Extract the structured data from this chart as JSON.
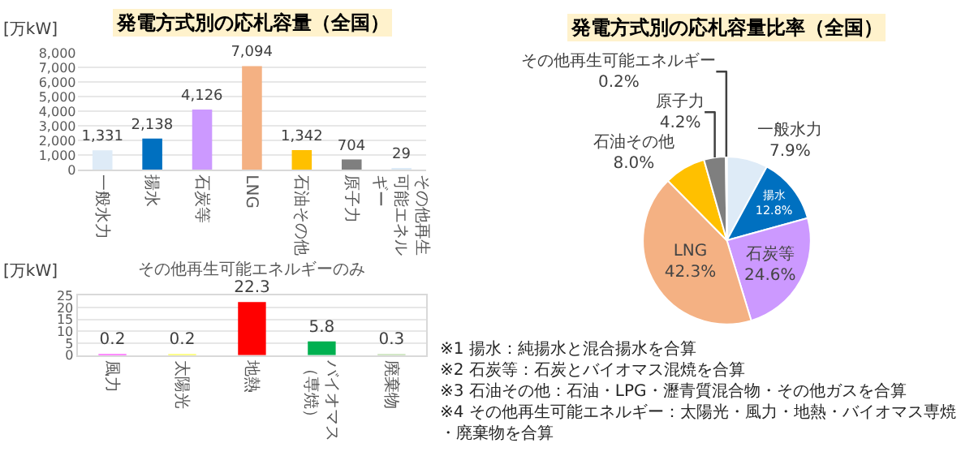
{
  "chart_data": [
    {
      "type": "bar",
      "title": "発電方式別の応札容量（全国）",
      "ylabel": "[万kW]",
      "categories": [
        "一般水力",
        "揚水",
        "石炭等",
        "LNG",
        "石油その他",
        "原子力",
        "その他再生可能エネルギー"
      ],
      "values": [
        1331,
        2138,
        4126,
        7094,
        1342,
        704,
        29
      ],
      "value_labels": [
        "1,331",
        "2,138",
        "4,126",
        "7,094",
        "1,342",
        "704",
        "29"
      ],
      "colors": [
        "#deebf7",
        "#0070c0",
        "#cc99ff",
        "#f4b183",
        "#ffc000",
        "#7f7f7f",
        "#ddebf7"
      ],
      "ylim": [
        0,
        8000
      ],
      "yticks": [
        {
          "value": 0,
          "label": "0"
        },
        {
          "value": 1000,
          "label": "1,000"
        },
        {
          "value": 2000,
          "label": "2,000"
        },
        {
          "value": 3000,
          "label": "3,000"
        },
        {
          "value": 4000,
          "label": "4,000"
        },
        {
          "value": 5000,
          "label": "5,000"
        },
        {
          "value": 6000,
          "label": "6,000"
        },
        {
          "value": 7000,
          "label": "7,000"
        },
        {
          "value": 8000,
          "label": "8,000"
        }
      ],
      "grid": "y"
    },
    {
      "type": "bar",
      "title": "その他再生可能エネルギーのみ",
      "ylabel": "[万kW]",
      "categories": [
        "風力",
        "太陽光",
        "地熱",
        "バイオマス（専焼）",
        "廃棄物"
      ],
      "values": [
        0.2,
        0.2,
        22.3,
        5.8,
        0.3
      ],
      "colors": [
        "#ff66ff",
        "#ffff66",
        "#ff0000",
        "#00b050",
        "#c5e0b4"
      ],
      "ylim": [
        0,
        25
      ],
      "yticks": [
        0,
        5,
        10,
        15,
        20,
        25
      ],
      "grid": "y",
      "data_labels": true
    },
    {
      "type": "pie",
      "title": "発電方式別の応札容量比率（全国）",
      "categories": [
        "一般水力",
        "揚水",
        "石炭等",
        "LNG",
        "石油その他",
        "原子力",
        "その他再生可能エネルギー"
      ],
      "values": [
        7.9,
        12.8,
        24.6,
        42.3,
        8.0,
        4.2,
        0.2
      ],
      "value_labels": [
        "7.9%",
        "12.8%",
        "24.6%",
        "42.3%",
        "8.0%",
        "4.2%",
        "0.2%"
      ],
      "colors": [
        "#deebf7",
        "#0070c0",
        "#cc99ff",
        "#f4b183",
        "#ffc000",
        "#7f7f7f",
        "#bdd7ee"
      ],
      "annotations": [
        "※1 揚水：純揚水と混合揚水を合算",
        "※2 石炭等：石炭とバイオマス混焼を合算",
        "※3 石油その他：石油・LPG・瀝青質混合物・その他ガスを合算",
        "※4 その他再生可能エネルギー：太陽光・風力・地熱・バイオマス専焼・廃棄物を合算"
      ]
    }
  ]
}
